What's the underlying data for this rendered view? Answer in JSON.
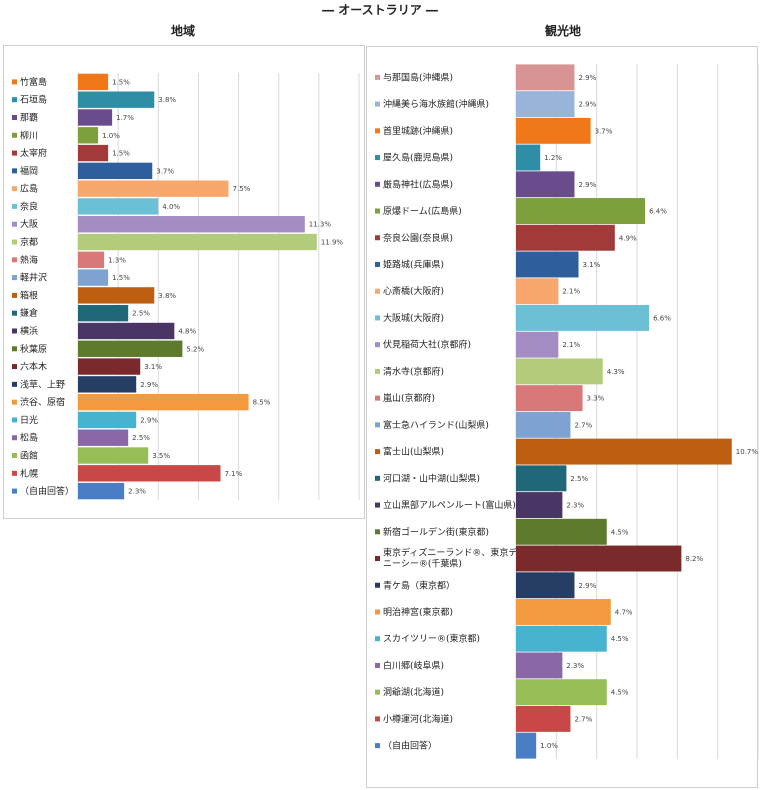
{
  "title": "― オーストラリア ―",
  "chart_data": [
    {
      "type": "bar",
      "orientation": "horizontal",
      "title": "地域",
      "xlim": [
        0,
        14
      ],
      "grid": true,
      "value_suffix": "%",
      "categories": [
        "竹富島",
        "石垣島",
        "那覇",
        "柳川",
        "太宰府",
        "福岡",
        "広島",
        "奈良",
        "大阪",
        "京都",
        "熱海",
        "軽井沢",
        "箱根",
        "鎌倉",
        "横浜",
        "秋葉原",
        "六本木",
        "浅草、上野",
        "渋谷、原宿",
        "日光",
        "松島",
        "函館",
        "札幌",
        "（自由回答）"
      ],
      "values": [
        1.5,
        3.8,
        1.7,
        1.0,
        1.5,
        3.7,
        7.5,
        4.0,
        11.3,
        11.9,
        1.3,
        1.5,
        3.8,
        2.5,
        4.8,
        5.2,
        3.1,
        2.9,
        8.5,
        2.9,
        2.5,
        3.5,
        7.1,
        2.3
      ],
      "colors": [
        "#F07818",
        "#2E8EA6",
        "#6A4C8C",
        "#7EA03C",
        "#A23A3A",
        "#2E5E9C",
        "#F8A86C",
        "#6CC0D6",
        "#A48CC4",
        "#B2CC7C",
        "#D87878",
        "#7EA2D2",
        "#BE5E10",
        "#206878",
        "#4A3664",
        "#5E7A2C",
        "#7A2A2A",
        "#263E66",
        "#F49A3E",
        "#46B4CE",
        "#8A68A8",
        "#96BE54",
        "#C84848",
        "#4A7EC4"
      ]
    },
    {
      "type": "bar",
      "orientation": "horizontal",
      "title": "観光地",
      "xlim": [
        0,
        12
      ],
      "grid": true,
      "value_suffix": "%",
      "categories": [
        "与那国島(沖縄県)",
        "沖縄美ら海水族館(沖縄県)",
        "首里城跡(沖縄県)",
        "屋久島(鹿児島県)",
        "厳島神社(広島県)",
        "原爆ドーム(広島県)",
        "奈良公園(奈良県)",
        "姫路城(兵庫県)",
        "心斎橋(大阪府)",
        "大阪城(大阪府)",
        "伏見稲荷大社(京都府)",
        "清水寺(京都府)",
        "嵐山(京都府)",
        "富士急ハイランド(山梨県)",
        "富士山(山梨県)",
        "河口湖・山中湖(山梨県)",
        "立山黒部アルペンルート(富山県)",
        "新宿ゴールデン街(東京都)",
        "東京ディズニーランド®、東京ディズニーシー®(千葉県)",
        "青ケ島（東京都）",
        "明治神宮(東京都)",
        "スカイツリー®(東京都)",
        "白川郷(岐阜県)",
        "洞爺湖(北海道)",
        "小樽運河(北海道)",
        "（自由回答）"
      ],
      "values": [
        2.9,
        2.9,
        3.7,
        1.2,
        2.9,
        6.4,
        4.9,
        3.1,
        2.1,
        6.6,
        2.1,
        4.3,
        3.3,
        2.7,
        10.7,
        2.5,
        2.3,
        4.5,
        8.2,
        2.9,
        4.7,
        4.5,
        2.3,
        4.5,
        2.7,
        1.0
      ],
      "colors": [
        "#D89494",
        "#98B4D8",
        "#F07818",
        "#2E8EA6",
        "#6A4C8C",
        "#7EA03C",
        "#A23A3A",
        "#2E5E9C",
        "#F8A86C",
        "#6CC0D6",
        "#A48CC4",
        "#B2CC7C",
        "#D87878",
        "#7EA2D2",
        "#BE5E10",
        "#206878",
        "#4A3664",
        "#5E7A2C",
        "#7A2A2A",
        "#263E66",
        "#F49A3E",
        "#46B4CE",
        "#8A68A8",
        "#96BE54",
        "#C84848",
        "#4A7EC4"
      ]
    }
  ]
}
